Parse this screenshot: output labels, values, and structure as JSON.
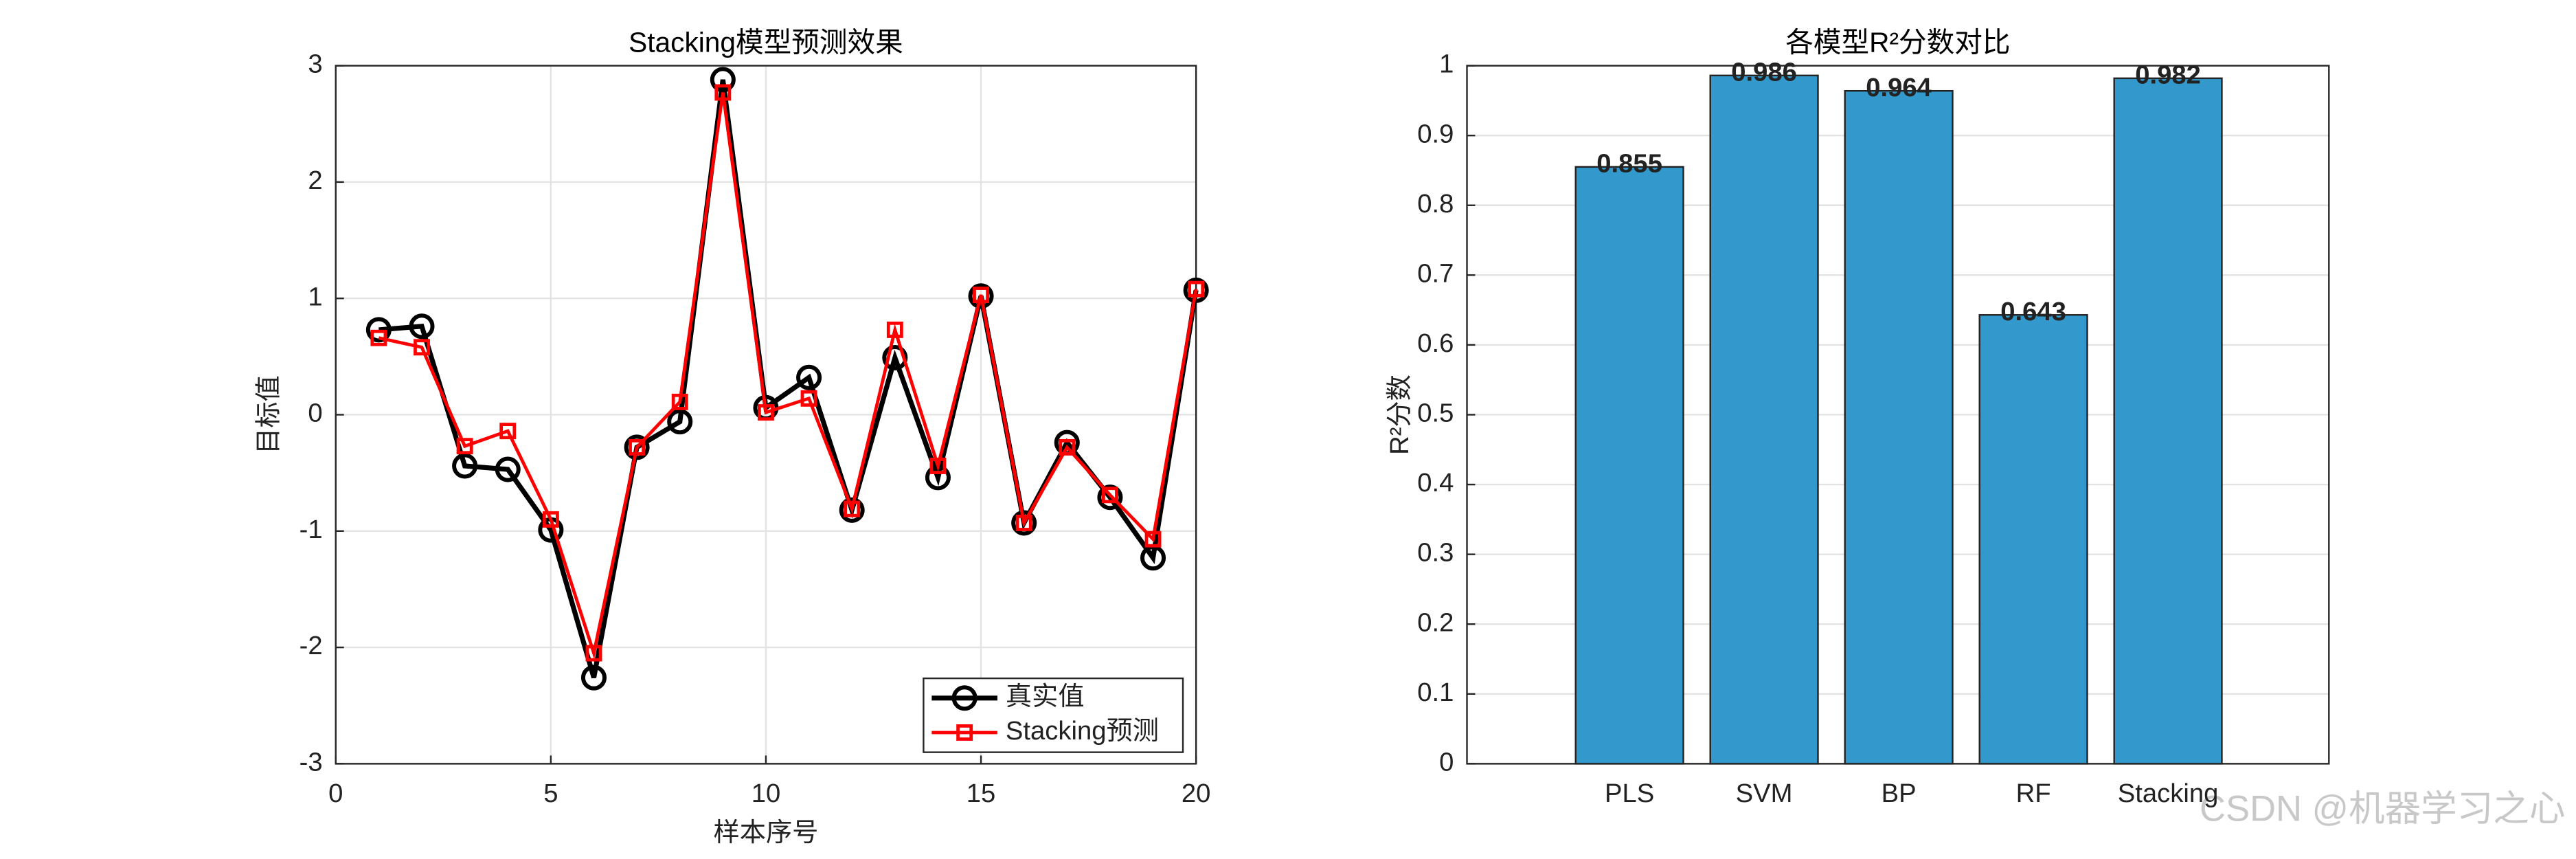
{
  "chart_data": [
    {
      "type": "line",
      "title": "Stacking模型预测效果",
      "x_label": "样本序号",
      "y_label": "目标值",
      "x": [
        1,
        2,
        3,
        4,
        5,
        6,
        7,
        8,
        9,
        10,
        11,
        12,
        13,
        14,
        15,
        16,
        17,
        18,
        19,
        20
      ],
      "series": [
        {
          "name": "真实值",
          "color": "#000000",
          "marker": "circle",
          "values": [
            0.73,
            0.76,
            -0.44,
            -0.47,
            -0.99,
            -2.26,
            -0.28,
            -0.06,
            2.88,
            0.06,
            0.32,
            -0.82,
            0.49,
            -0.54,
            1.02,
            -0.93,
            -0.24,
            -0.71,
            -1.23,
            1.07
          ]
        },
        {
          "name": "Stacking预测",
          "color": "#ff0000",
          "marker": "square",
          "values": [
            0.66,
            0.58,
            -0.27,
            -0.14,
            -0.9,
            -2.05,
            -0.28,
            0.11,
            2.77,
            0.02,
            0.14,
            -0.81,
            0.73,
            -0.44,
            1.03,
            -0.93,
            -0.28,
            -0.69,
            -1.07,
            1.08
          ]
        }
      ],
      "xlim": [
        0,
        20
      ],
      "xticks": [
        0,
        5,
        10,
        15,
        20
      ],
      "ylim": [
        -3,
        3
      ],
      "yticks": [
        -3,
        -2,
        -1,
        0,
        1,
        2,
        3
      ],
      "grid": true,
      "legend": "lower right"
    },
    {
      "type": "bar",
      "title": "各模型R²分数对比",
      "y_label": "R²分数",
      "categories": [
        "PLS",
        "SVM",
        "BP",
        "RF",
        "Stacking"
      ],
      "values": [
        0.855,
        0.986,
        0.964,
        0.643,
        0.982
      ],
      "color": "#3399cc",
      "ylim": [
        0,
        1
      ],
      "yticks": [
        0,
        0.1,
        0.2,
        0.3,
        0.4,
        0.5,
        0.6,
        0.7,
        0.8,
        0.9,
        1
      ],
      "grid": true,
      "value_labels_shown": true
    }
  ],
  "watermark": "CSDN @机器学习之心"
}
